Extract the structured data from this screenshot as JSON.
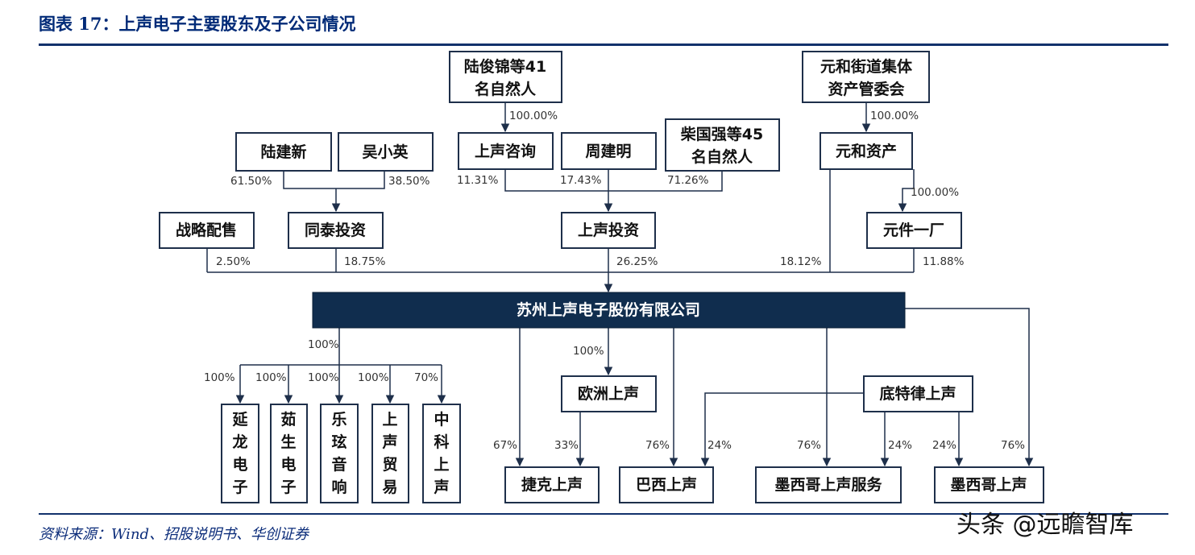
{
  "title": "图表 17：上声电子主要股东及子公司情况",
  "source": "资料来源：Wind、招股说明书、华创证券",
  "watermark": "头条 @远瞻智库",
  "nodes": {
    "lujunjin": [
      "陆俊锦等41",
      "名自然人"
    ],
    "yuanhe_jiedao": [
      "元和街道集体",
      "资产管委会"
    ],
    "lujianxin": "陆建新",
    "wuxiaoying": "吴小英",
    "shangsheng_zixun": "上声咨询",
    "zhoujianming": "周建明",
    "chaiguoqiang": [
      "柴国强等45",
      "名自然人"
    ],
    "yuanhe_zichan": "元和资产",
    "zhanlue_peishou": "战略配售",
    "tongtai_touzi": "同泰投资",
    "shangsheng_touzi": "上声投资",
    "yuanjian_yichang": "元件一厂",
    "main": "苏州上声电子股份有限公司",
    "ouzhou": "欧洲上声",
    "dite_lv": "底特律上声",
    "yanlong": [
      "延",
      "龙",
      "电",
      "子"
    ],
    "rusheng": [
      "茹",
      "生",
      "电",
      "子"
    ],
    "lexuan": [
      "乐",
      "玹",
      "音",
      "响"
    ],
    "maoyi": [
      "上",
      "声",
      "贸",
      "易"
    ],
    "zhongke": [
      "中",
      "科",
      "上",
      "声"
    ],
    "jieke": "捷克上声",
    "baxi": "巴西上声",
    "mexico_service": "墨西哥上声服务",
    "mexico": "墨西哥上声"
  },
  "percentages": {
    "lujunjin_zixun": "100.00%",
    "yuanhe_zichan": "100.00%",
    "lujianxin": "61.50%",
    "wuxiaoying": "38.50%",
    "zixun": "11.31%",
    "zhoujianming": "17.43%",
    "chaiguoqiang": "71.26%",
    "yuanjian": "100.00%",
    "zhanlue": "2.50%",
    "tongtai": "18.75%",
    "shangsheng_touzi": "26.25%",
    "yuanhe_direct": "18.12%",
    "yuanjian_direct": "11.88%",
    "subs_group": "100%",
    "yanlong": "100%",
    "rusheng": "100%",
    "lexuan": "100%",
    "maoyi": "100%",
    "zhongke": "70%",
    "ouzhou": "100%",
    "jieke_main": "67%",
    "jieke_ouzhou": "33%",
    "baxi_main": "76%",
    "baxi_dite": "24%",
    "mexserv_main": "76%",
    "mexserv_dite": "24%",
    "mex_dite": "24%",
    "mex_main": "76%"
  }
}
